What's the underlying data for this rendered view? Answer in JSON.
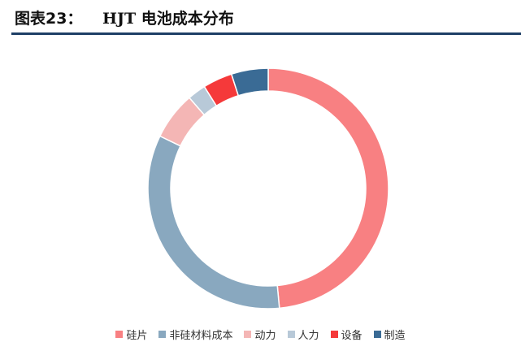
{
  "figure": {
    "label": "图表23：",
    "title": "HJT 电池成本分布"
  },
  "chart_data": {
    "type": "pie",
    "title": "",
    "legend_position": "bottom",
    "categories": [
      "硅片",
      "非硅材料成本",
      "动力",
      "人力",
      "设备",
      "制造"
    ],
    "values": [
      49,
      34,
      6.5,
      2.5,
      4,
      5
    ],
    "colors": [
      "#f88082",
      "#89a8bf",
      "#f4b6b5",
      "#b8c9d8",
      "#f5393a",
      "#3a6b95"
    ]
  }
}
